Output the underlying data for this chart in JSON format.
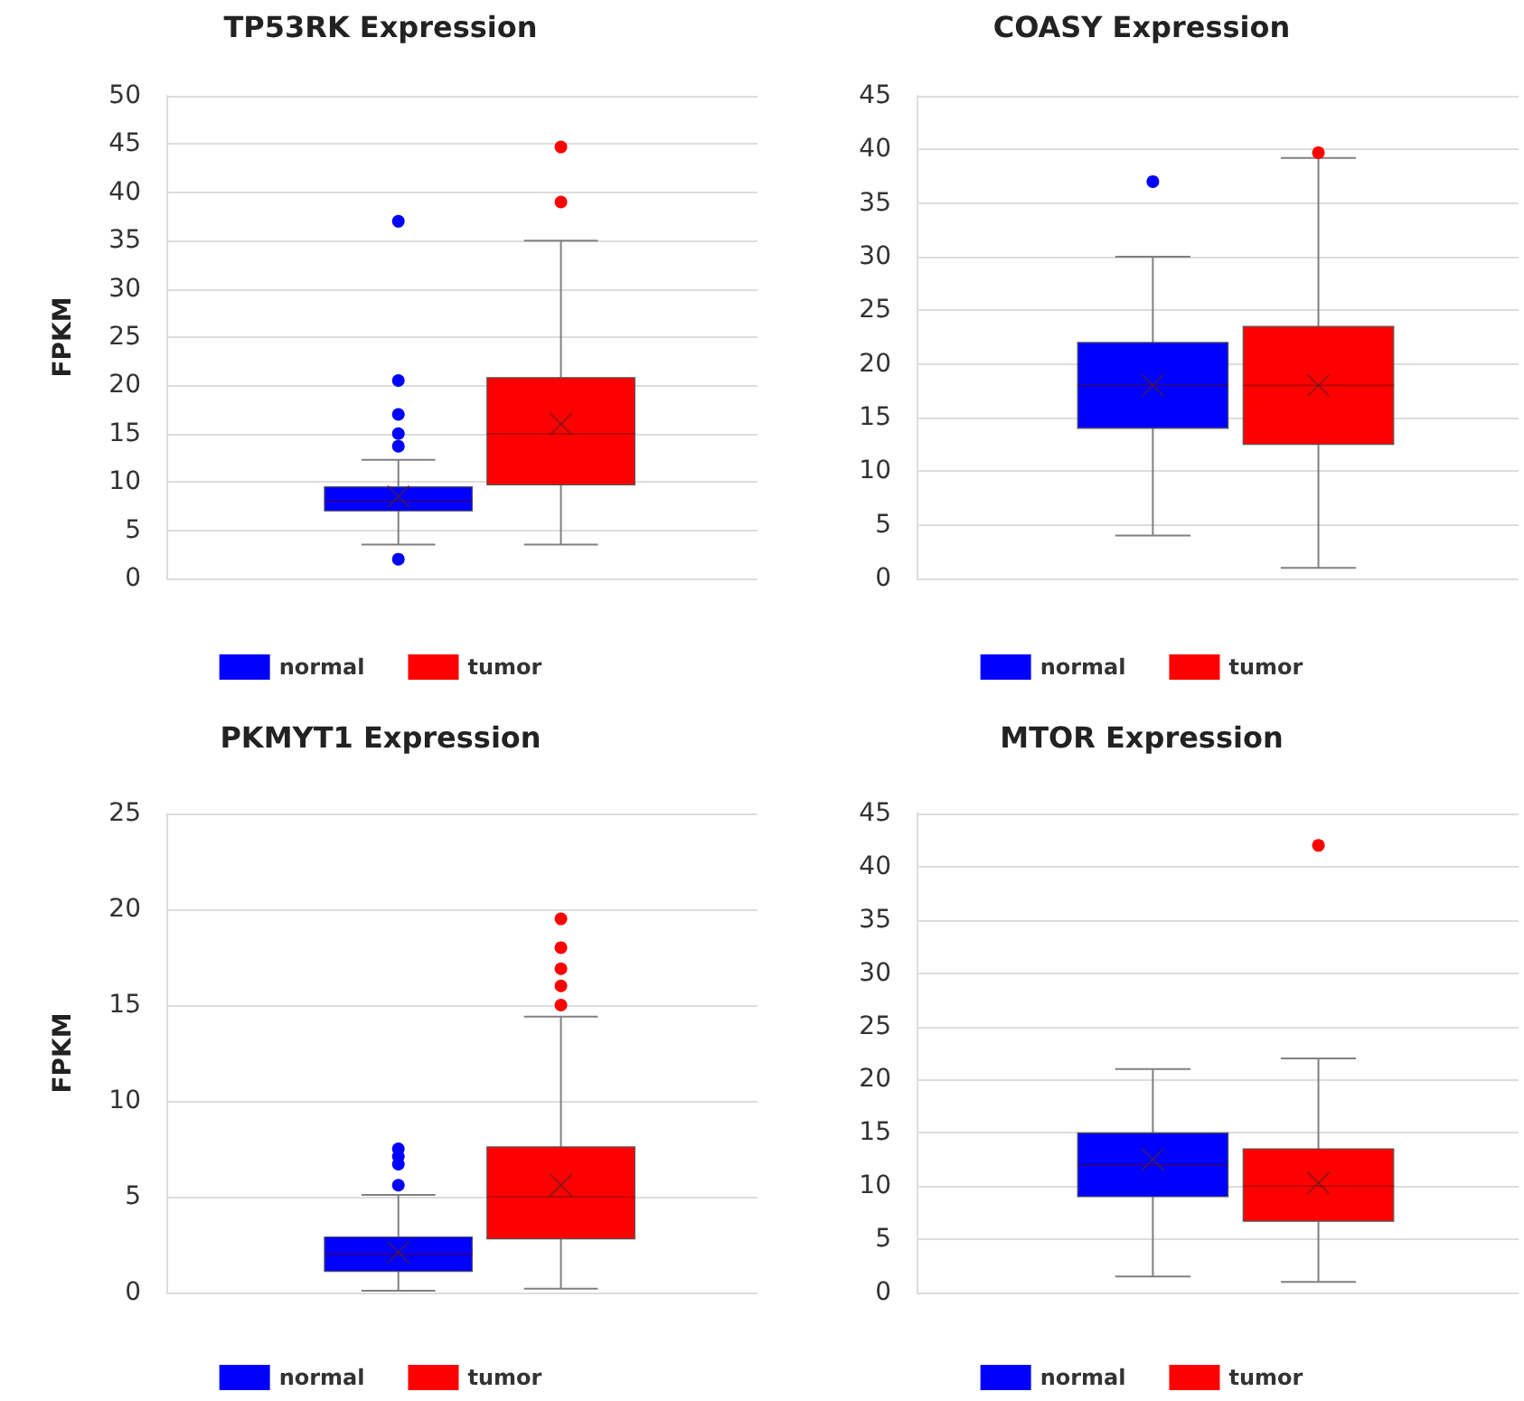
{
  "chart_data": [
    {
      "type": "box",
      "title": "TP53RK Expression",
      "ylabel": "FPKM",
      "categories": [
        null
      ],
      "ylim": [
        0,
        50
      ],
      "yticks": [
        0,
        5,
        10,
        15,
        20,
        25,
        30,
        35,
        40,
        45,
        50
      ],
      "grid": "y",
      "legend": "bottom",
      "series": [
        {
          "name": "normal",
          "color": "#0000ff",
          "boxes": [
            {
              "low": 3.5,
              "q1": 7,
              "median": 8,
              "q3": 9.5,
              "high": 12.3,
              "mean": 8.5,
              "outliers": [
                2,
                13.7,
                15,
                17,
                20.5,
                37
              ]
            }
          ]
        },
        {
          "name": "tumor",
          "color": "#ff0000",
          "boxes": [
            {
              "low": 3.5,
              "q1": 9.7,
              "median": 15,
              "q3": 20.8,
              "high": 35,
              "mean": 16,
              "outliers": [
                39,
                44.7
              ]
            }
          ]
        }
      ]
    },
    {
      "type": "box",
      "title": "COASY Expression",
      "categories": [
        null
      ],
      "ylim": [
        0,
        45
      ],
      "yticks": [
        0,
        5,
        10,
        15,
        20,
        25,
        30,
        35,
        40,
        45
      ],
      "grid": "y",
      "legend": "bottom",
      "series": [
        {
          "name": "normal",
          "color": "#0000ff",
          "boxes": [
            {
              "low": 4,
              "q1": 14,
              "median": 18,
              "q3": 22,
              "high": 30,
              "mean": 18,
              "outliers": [
                37
              ]
            }
          ]
        },
        {
          "name": "tumor",
          "color": "#ff0000",
          "boxes": [
            {
              "low": 1,
              "q1": 12.5,
              "median": 18,
              "q3": 23.5,
              "high": 39.2,
              "mean": 18,
              "outliers": [
                39.7
              ]
            }
          ]
        }
      ]
    },
    {
      "type": "box",
      "title": "PKMYT1 Expression",
      "ylabel": "FPKM",
      "categories": [
        null
      ],
      "ylim": [
        0,
        25
      ],
      "yticks": [
        0,
        5,
        10,
        15,
        20,
        25
      ],
      "grid": "y",
      "legend": "bottom",
      "series": [
        {
          "name": "normal",
          "color": "#0000ff",
          "boxes": [
            {
              "low": 0.1,
              "q1": 1.1,
              "median": 2,
              "q3": 2.9,
              "high": 5.1,
              "mean": 2.1,
              "outliers": [
                5.6,
                6.7,
                7.1,
                7.5
              ]
            }
          ]
        },
        {
          "name": "tumor",
          "color": "#ff0000",
          "boxes": [
            {
              "low": 0.2,
              "q1": 2.8,
              "median": 5,
              "q3": 7.6,
              "high": 14.4,
              "mean": 5.6,
              "outliers": [
                15,
                16,
                16.9,
                18,
                19.5
              ]
            }
          ]
        }
      ]
    },
    {
      "type": "box",
      "title": "MTOR Expression",
      "categories": [
        null
      ],
      "ylim": [
        0,
        45
      ],
      "yticks": [
        0,
        5,
        10,
        15,
        20,
        25,
        30,
        35,
        40,
        45
      ],
      "grid": "y",
      "legend": "bottom",
      "series": [
        {
          "name": "normal",
          "color": "#0000ff",
          "boxes": [
            {
              "low": 1.5,
              "q1": 9,
              "median": 12,
              "q3": 15,
              "high": 21,
              "mean": 12.5
            }
          ]
        },
        {
          "name": "tumor",
          "color": "#ff0000",
          "boxes": [
            {
              "low": 1,
              "q1": 6.7,
              "median": 10,
              "q3": 13.5,
              "high": 22,
              "mean": 10.3,
              "outliers": [
                42
              ]
            }
          ]
        }
      ]
    }
  ]
}
